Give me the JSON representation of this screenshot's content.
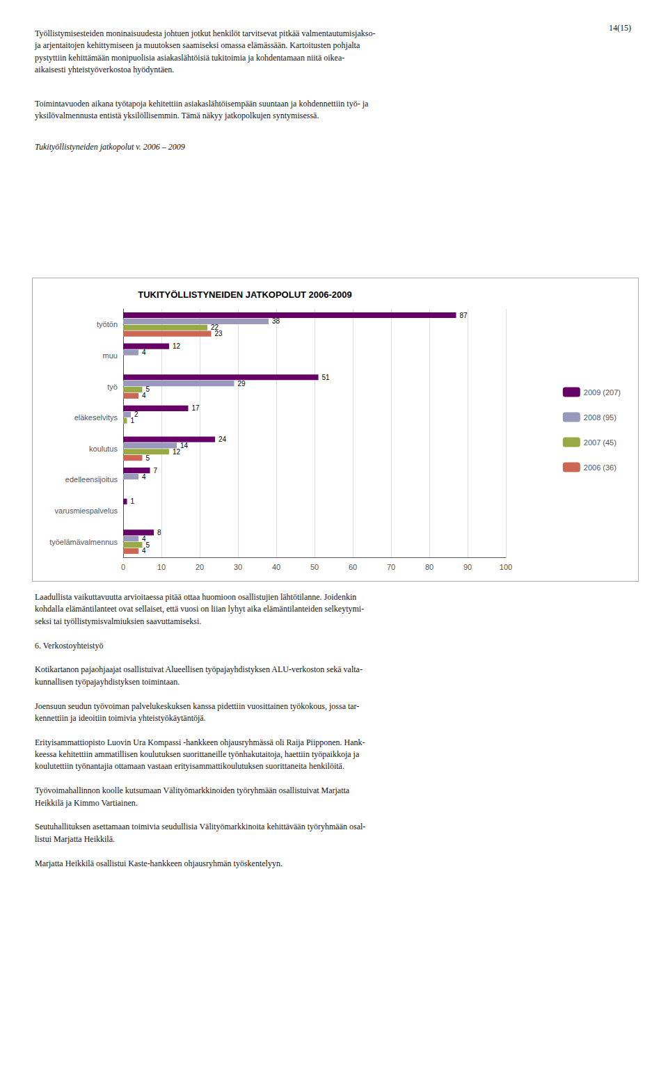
{
  "chart_data": {
    "type": "bar",
    "orientation": "horizontal",
    "title": "TUKITYÖLLISTYNEIDEN JATKOPOLUT 2006-2009",
    "categories": [
      "työtön",
      "muu",
      "työ",
      "eläkeselvitys",
      "koulutus",
      "edelleensijoitus",
      "varusmiespalvelus",
      "työelämävalmennus"
    ],
    "series": [
      {
        "name": "2009 (207)",
        "color": "#660066",
        "values": [
          87,
          12,
          51,
          17,
          24,
          7,
          1,
          8
        ]
      },
      {
        "name": "2008 (95)",
        "color": "#9999bb",
        "values": [
          38,
          4,
          29,
          2,
          14,
          4,
          0,
          4
        ]
      },
      {
        "name": "2007 (45)",
        "color": "#99aa44",
        "values": [
          22,
          0,
          5,
          1,
          12,
          0,
          0,
          5
        ]
      },
      {
        "name": "2006 (36)",
        "color": "#cc6655",
        "values": [
          23,
          0,
          4,
          0,
          5,
          0,
          0,
          4
        ]
      }
    ],
    "xlim": [
      0,
      100
    ],
    "xticks": [
      0,
      10,
      20,
      30,
      40,
      50,
      60,
      70,
      80,
      90,
      100
    ],
    "grid": true,
    "data_labels": true,
    "legend": "right",
    "annotations": [
      "14(15)",
      "Työllistymisesteiden moninaisuudesta johtuen jotkut henkilöt tarvitsevat pitkää valmentautumisjakso-\nja arjentaitojen kehittymiseen ja muutoksen saamiseksi omassa elämässään. Kartoitusten pohjalta\npystyttiin kehittämään monipuolisia asiakaslähtöisiä tukitoimia ja kohdentamaan niitä oikea-\naikaisesti yhteistyöverkostoa hyödyntäen.",
      "Toimintavuoden aikana työtapoja kehitettiin asiakaslähtöisempään suuntaan ja kohdennettiin työ- ja\nyksilövalmennusta entistä yksilöllisemmin. Tämä näkyy jatkopolkujen syntymisessä.",
      "Tukityöllistyneiden jatkopolut v. 2006 – 2009",
      "Laadullista vaikuttavuutta arvioitaessa pitää ottaa huomioon osallistujien lähtötilanne. Joidenkin\nkohdalla elämäntilanteet ovat sellaiset, että vuosi on liian lyhyt aika elämäntilanteiden selkeytymi-\nseksi tai työllistymisvalmiuksien saavuttamiseksi.\n\n6. Verkostoyhteistyö\n\nKotikartanon pajaohjaajat osallistuivat Alueellisen työpajayhdistyksen ALU-verkoston sekä valta-\nkunnallisen työpajayhdistyksen toimintaan.\n\nJoensuun seudun työvoiman palvelukeskuksen kanssa pidettiin vuosittainen työkokous, jossa tar-\nkennettiin ja ideoitiin toimivia yhteistyökäytäntöjä.\n\nErityisammattiopisto Luovin Ura Kompassi -hankkeen ohjausryhmässä oli Raija Piipponen. Hank-\nkeessa kehitettiin ammatillisen koulutuksen suorittaneille työnhakutaitoja, haettiin työpaikkoja ja\nkoulutettiin työnantajia ottamaan vastaan erityisammattikoulutuksen suorittaneita henkilöitä.\n\nTyövoimahallinnon koolle kutsumaan Välityömarkkinoiden työryhmään osallistuivat Marjatta\nHeikkilä ja Kimmo Vartiainen.\n\nSeutuhallituksen asettamaan toimivia seudullisia Välityömarkkinoita kehittävään työryhmään osal-\nlistui Marjatta Heikkilä.\n\nMarjatta Heikkilä osallistui Kaste-hankkeen ohjausryhmän työskentelyyn."
    ]
  }
}
